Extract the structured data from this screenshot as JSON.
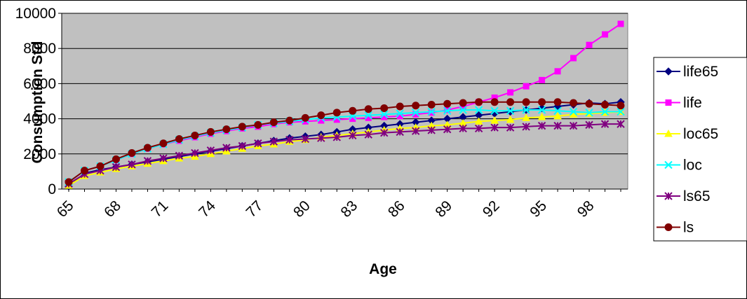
{
  "chart_data": {
    "type": "line",
    "title": "",
    "xlabel": "Age",
    "ylabel": "Consumption Std",
    "ylim": [
      0,
      10000
    ],
    "yticks": [
      0,
      2000,
      4000,
      6000,
      8000,
      10000
    ],
    "xlim": [
      65,
      100
    ],
    "xticks": [
      65,
      68,
      71,
      74,
      77,
      80,
      83,
      86,
      89,
      92,
      95,
      98
    ],
    "grid": "horizontal major",
    "plot_background": "#c0c0c0",
    "legend_position": "right",
    "x": [
      65,
      66,
      67,
      68,
      69,
      70,
      71,
      72,
      73,
      74,
      75,
      76,
      77,
      78,
      79,
      80,
      81,
      82,
      83,
      84,
      85,
      86,
      87,
      88,
      89,
      90,
      91,
      92,
      93,
      94,
      95,
      96,
      97,
      98,
      99,
      100
    ],
    "series": [
      {
        "name": "life65",
        "color": "#000080",
        "marker": "diamond",
        "values": [
          150,
          900,
          1100,
          1250,
          1400,
          1550,
          1700,
          1850,
          2000,
          2150,
          2300,
          2450,
          2600,
          2750,
          2900,
          3000,
          3100,
          3250,
          3400,
          3500,
          3600,
          3700,
          3800,
          3900,
          4000,
          4100,
          4200,
          4300,
          4400,
          4500,
          4600,
          4700,
          4800,
          4900,
          4850,
          4950
        ]
      },
      {
        "name": "life",
        "color": "#ff00ff",
        "marker": "square",
        "values": [
          400,
          1050,
          1300,
          1650,
          2000,
          2300,
          2550,
          2750,
          2950,
          3150,
          3300,
          3450,
          3550,
          3700,
          3800,
          3850,
          3900,
          3950,
          4000,
          4050,
          4100,
          4150,
          4250,
          4350,
          4500,
          4700,
          4950,
          5200,
          5500,
          5850,
          6200,
          6700,
          7450,
          8200,
          8800,
          9400
        ]
      },
      {
        "name": "loc65",
        "color": "#ffff00",
        "marker": "triangle",
        "values": [
          200,
          750,
          950,
          1150,
          1300,
          1450,
          1600,
          1750,
          1850,
          2000,
          2150,
          2300,
          2450,
          2550,
          2700,
          2800,
          2950,
          3050,
          3150,
          3250,
          3350,
          3450,
          3500,
          3600,
          3650,
          3750,
          3850,
          3900,
          3950,
          4050,
          4100,
          4150,
          4250,
          4300,
          4350,
          4400
        ]
      },
      {
        "name": "loc",
        "color": "#00ffff",
        "marker": "x",
        "values": [
          400,
          1050,
          1300,
          1650,
          2000,
          2300,
          2550,
          2800,
          3000,
          3200,
          3350,
          3500,
          3650,
          3750,
          3850,
          3950,
          4050,
          4100,
          4150,
          4200,
          4250,
          4300,
          4350,
          4400,
          4450,
          4500,
          4500,
          4450,
          4450,
          4500,
          4500,
          4450,
          4400,
          4350,
          4400,
          4400
        ]
      },
      {
        "name": "ls65",
        "color": "#800080",
        "marker": "star",
        "values": [
          300,
          850,
          1050,
          1250,
          1400,
          1600,
          1750,
          1900,
          2050,
          2200,
          2350,
          2450,
          2600,
          2700,
          2800,
          2850,
          2900,
          2950,
          3050,
          3100,
          3200,
          3250,
          3300,
          3350,
          3400,
          3450,
          3450,
          3500,
          3500,
          3550,
          3600,
          3600,
          3600,
          3650,
          3700,
          3700
        ]
      },
      {
        "name": "ls",
        "color": "#800000",
        "marker": "circle",
        "values": [
          400,
          1050,
          1300,
          1700,
          2050,
          2350,
          2600,
          2850,
          3050,
          3250,
          3400,
          3550,
          3650,
          3800,
          3900,
          4050,
          4200,
          4350,
          4450,
          4550,
          4600,
          4700,
          4750,
          4800,
          4850,
          4900,
          4950,
          4950,
          4950,
          4950,
          4950,
          4950,
          4900,
          4850,
          4800,
          4750
        ]
      }
    ]
  }
}
